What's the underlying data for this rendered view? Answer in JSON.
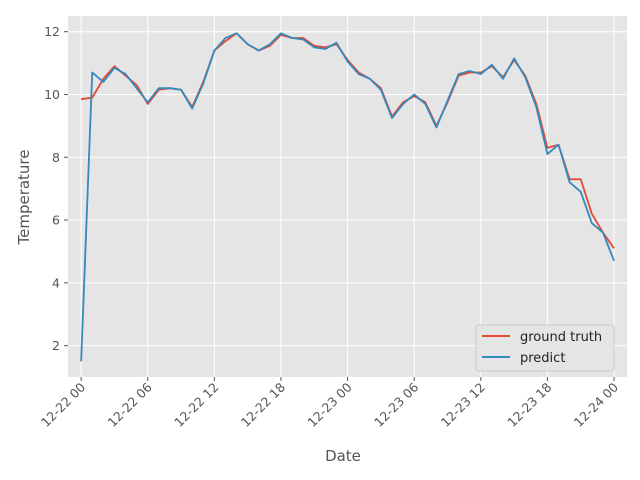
{
  "chart_data": {
    "type": "line",
    "xlabel": "Date",
    "ylabel": "Temperature",
    "x_ticks": [
      "12-22 00",
      "12-22 06",
      "12-22 12",
      "12-22 18",
      "12-23 00",
      "12-23 06",
      "12-23 12",
      "12-23 18",
      "12-24 00"
    ],
    "y_ticks": [
      "2",
      "4",
      "6",
      "8",
      "10",
      "12"
    ],
    "xlim": [
      "2021-12-21T22:49",
      "2021-12-24T01:10"
    ],
    "ylim": [
      1.0,
      12.5
    ],
    "grid": true,
    "legend_position": "lower-right",
    "colors": {
      "background": "#E5E5E5",
      "grid": "#FFFFFF",
      "ground_truth": "#E24A33",
      "predict": "#348ABD"
    },
    "x": [
      "2021-12-22T00:00",
      "2021-12-22T01:00",
      "2021-12-22T02:00",
      "2021-12-22T03:00",
      "2021-12-22T04:00",
      "2021-12-22T05:00",
      "2021-12-22T06:00",
      "2021-12-22T07:00",
      "2021-12-22T08:00",
      "2021-12-22T09:00",
      "2021-12-22T10:00",
      "2021-12-22T11:00",
      "2021-12-22T12:00",
      "2021-12-22T13:00",
      "2021-12-22T14:00",
      "2021-12-22T15:00",
      "2021-12-22T16:00",
      "2021-12-22T17:00",
      "2021-12-22T18:00",
      "2021-12-22T19:00",
      "2021-12-22T20:00",
      "2021-12-22T21:00",
      "2021-12-22T22:00",
      "2021-12-22T23:00",
      "2021-12-23T00:00",
      "2021-12-23T01:00",
      "2021-12-23T02:00",
      "2021-12-23T03:00",
      "2021-12-23T04:00",
      "2021-12-23T05:00",
      "2021-12-23T06:00",
      "2021-12-23T07:00",
      "2021-12-23T08:00",
      "2021-12-23T09:00",
      "2021-12-23T10:00",
      "2021-12-23T11:00",
      "2021-12-23T12:00",
      "2021-12-23T13:00",
      "2021-12-23T14:00",
      "2021-12-23T15:00",
      "2021-12-23T16:00",
      "2021-12-23T17:00",
      "2021-12-23T18:00",
      "2021-12-23T19:00",
      "2021-12-23T20:00",
      "2021-12-23T21:00",
      "2021-12-23T22:00",
      "2021-12-23T23:00",
      "2021-12-24T00:00"
    ],
    "series": [
      {
        "name": "ground truth",
        "values": [
          9.85,
          9.9,
          10.5,
          10.9,
          10.6,
          10.3,
          9.7,
          10.15,
          10.2,
          10.15,
          9.6,
          10.4,
          11.4,
          11.7,
          11.95,
          11.6,
          11.4,
          11.55,
          11.9,
          11.8,
          11.8,
          11.55,
          11.5,
          11.6,
          11.1,
          10.7,
          10.5,
          10.2,
          9.3,
          9.75,
          9.95,
          9.75,
          9.0,
          9.75,
          10.6,
          10.7,
          10.7,
          10.9,
          10.55,
          11.1,
          10.6,
          9.7,
          8.3,
          8.4,
          7.3,
          7.3,
          6.2,
          5.6,
          5.1
        ]
      },
      {
        "name": "predict",
        "values": [
          1.5,
          10.7,
          10.4,
          10.85,
          10.65,
          10.2,
          9.75,
          10.2,
          10.2,
          10.15,
          9.55,
          10.35,
          11.4,
          11.8,
          11.95,
          11.6,
          11.4,
          11.6,
          11.95,
          11.8,
          11.75,
          11.5,
          11.45,
          11.65,
          11.05,
          10.65,
          10.5,
          10.15,
          9.25,
          9.7,
          10.0,
          9.7,
          8.95,
          9.8,
          10.65,
          10.75,
          10.65,
          10.95,
          10.5,
          11.15,
          10.55,
          9.6,
          8.1,
          8.4,
          7.2,
          6.9,
          5.9,
          5.6,
          4.7
        ]
      }
    ]
  }
}
